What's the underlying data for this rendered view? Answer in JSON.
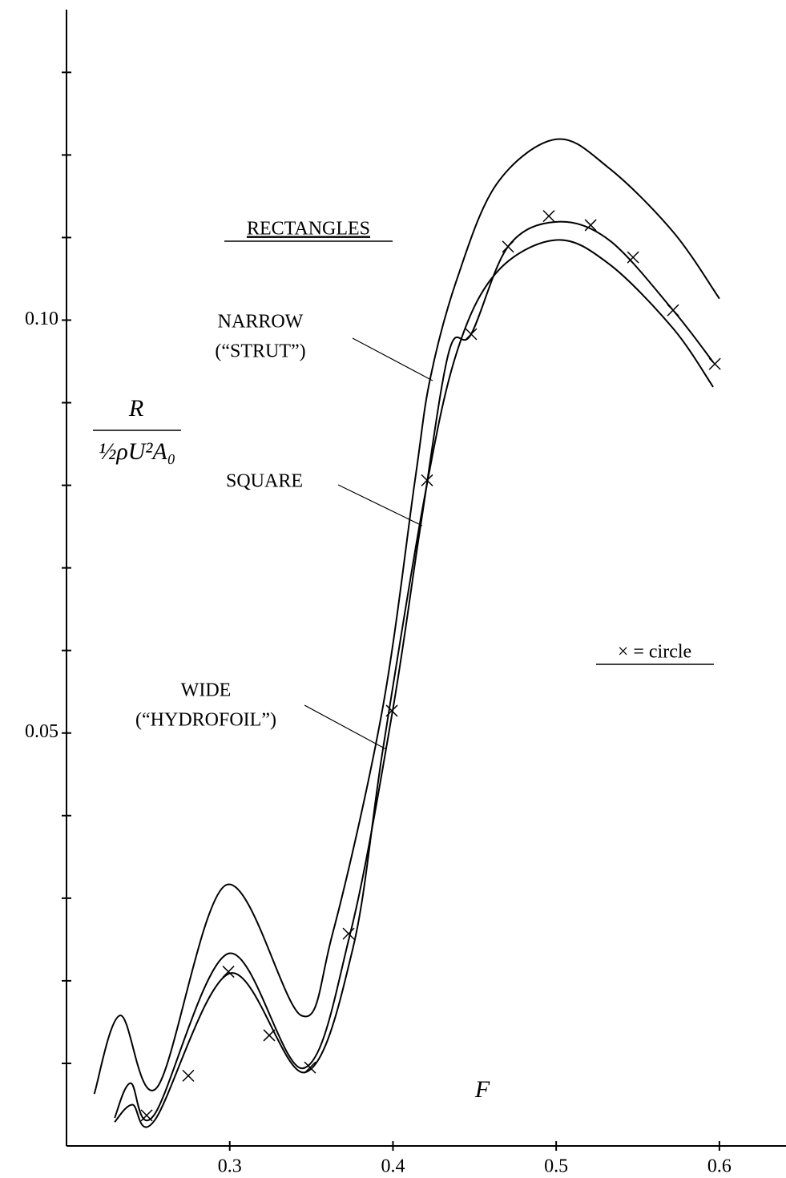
{
  "chart_data": {
    "type": "line",
    "xlabel": "F",
    "ylabel": {
      "numerator": "R",
      "denominator": "½ρU²A₀"
    },
    "title": "RECTANGLES",
    "xlim": [
      0.2,
      0.6408
    ],
    "ylim": [
      0,
      0.1376
    ],
    "xticks": [
      0.3,
      0.4,
      0.5,
      0.6
    ],
    "yticks": [
      0.05,
      {
        "value": 0.1,
        "label": "0.10"
      }
    ],
    "yminorticks": [
      0.01,
      0.02,
      0.03,
      0.04,
      0.06,
      0.07,
      0.08,
      0.09,
      0.11,
      0.12,
      0.13
    ],
    "series": [
      {
        "label": [
          "NARROW",
          "(“STRUT”)"
        ],
        "color": "#000000",
        "x": [
          0.217,
          0.233,
          0.2555,
          0.2977,
          0.3438,
          0.363,
          0.3934,
          0.4135,
          0.4229,
          0.4391,
          0.4636,
          0.5,
          0.5324,
          0.5716,
          0.6
        ],
        "values": [
          0.0063,
          0.0158,
          0.0071,
          0.0316,
          0.0158,
          0.0257,
          0.0527,
          0.0806,
          0.093,
          0.1049,
          0.1165,
          0.1219,
          0.1184,
          0.1107,
          0.1026
        ]
      },
      {
        "label": [
          "SQUARE"
        ],
        "color": "#000000",
        "x": [
          0.2295,
          0.2393,
          0.2535,
          0.2992,
          0.3448,
          0.3738,
          0.3998,
          0.417,
          0.4342,
          0.4479,
          0.4705,
          0.5,
          0.5324,
          0.5716,
          0.5962
        ],
        "values": [
          0.0034,
          0.0076,
          0.0037,
          0.0233,
          0.0094,
          0.0257,
          0.0527,
          0.0752,
          0.0961,
          0.0983,
          0.1089,
          0.1119,
          0.1097,
          0.1012,
          0.0949
        ]
      },
      {
        "label": [
          "WIDE",
          "(“HYDROFOIL”)"
        ],
        "color": "#000000",
        "x": [
          0.2295,
          0.2403,
          0.254,
          0.3,
          0.3458,
          0.3753,
          0.3939,
          0.4194,
          0.4391,
          0.4636,
          0.5,
          0.5324,
          0.5716,
          0.5962
        ],
        "values": [
          0.0029,
          0.005,
          0.0031,
          0.0209,
          0.0089,
          0.0238,
          0.0481,
          0.0786,
          0.0961,
          0.1058,
          0.1097,
          0.1068,
          0.099,
          0.0919
        ]
      }
    ],
    "markers": {
      "legend_text": "× = circle",
      "color": "#000000",
      "x": [
        0.2491,
        0.2746,
        0.2992,
        0.3242,
        0.3492,
        0.3728,
        0.3993,
        0.4209,
        0.4479,
        0.4705,
        0.4955,
        0.5211,
        0.5471,
        0.5716,
        0.5972
      ],
      "values": [
        0.0037,
        0.0085,
        0.0211,
        0.0134,
        0.0095,
        0.0257,
        0.0527,
        0.0806,
        0.0983,
        0.1089,
        0.1126,
        0.1115,
        0.1076,
        0.1012,
        0.0947
      ]
    }
  }
}
